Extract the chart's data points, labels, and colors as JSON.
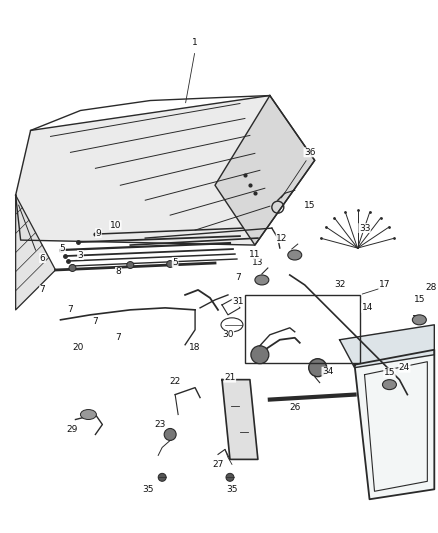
{
  "bg_color": "#ffffff",
  "fig_width": 4.38,
  "fig_height": 5.33,
  "dpi": 100,
  "line_color": "#2a2a2a",
  "label_fontsize": 6.5
}
